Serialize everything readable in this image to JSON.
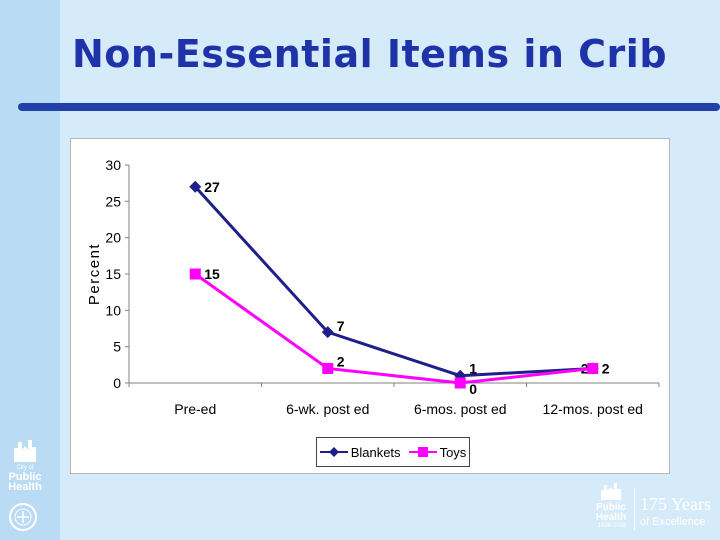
{
  "slide": {
    "title": "Non-Essential Items in Crib"
  },
  "chart_data": {
    "type": "line",
    "title": "",
    "xlabel": "",
    "ylabel": "Percent",
    "categories": [
      "Pre-ed",
      "6-wk. post ed",
      "6-mos. post ed",
      "12-mos. post ed"
    ],
    "yticks": [
      0,
      5,
      10,
      15,
      20,
      25,
      30
    ],
    "ylim": [
      0,
      30
    ],
    "grid": false,
    "legend_position": "bottom",
    "series": [
      {
        "name": "Blankets",
        "values": [
          27,
          7,
          1,
          2
        ],
        "labels": [
          "27",
          "7",
          "1",
          "2"
        ],
        "color": "#1f1f8a",
        "marker": "diamond"
      },
      {
        "name": "Toys",
        "values": [
          15,
          2,
          0,
          2
        ],
        "labels": [
          "15",
          "2",
          "0",
          "2"
        ],
        "color": "#ff00ff",
        "marker": "square"
      }
    ]
  },
  "branding": {
    "left_logo": [
      "City of",
      "Public",
      "Health"
    ],
    "right_logo": [
      "Public",
      "Health"
    ],
    "years_label": "1838-2018",
    "years": "175 Years",
    "tagline": "of Excellence"
  },
  "colors": {
    "background": "#d6ebf9",
    "title": "#1f33a8",
    "rule": "#2140a8"
  }
}
